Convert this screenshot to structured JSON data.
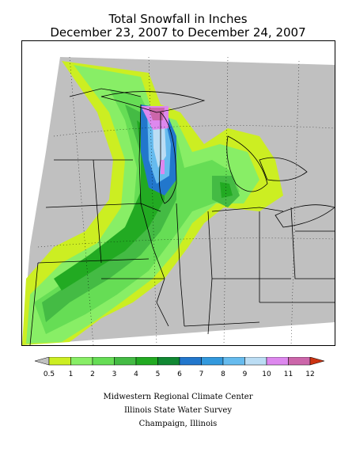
{
  "title": {
    "line1": "Total Snowfall in Inches",
    "line2": "December 23, 2007 to December 24, 2007"
  },
  "legend": {
    "labels": [
      "0.5",
      "1",
      "2",
      "3",
      "4",
      "5",
      "6",
      "7",
      "8",
      "9",
      "10",
      "11",
      "12"
    ],
    "colors": [
      "#c0c0c0",
      "#ccee22",
      "#88ee66",
      "#66dd55",
      "#44bb44",
      "#22aa22",
      "#118833",
      "#2277cc",
      "#3399dd",
      "#66bbee",
      "#bbddf4",
      "#dd88ee",
      "#cc66aa",
      "#cc3311"
    ]
  },
  "credits": {
    "line1": "Midwestern Regional Climate Center",
    "line2": "Illinois State Water Survey",
    "line3": "Champaign, Illinois"
  }
}
